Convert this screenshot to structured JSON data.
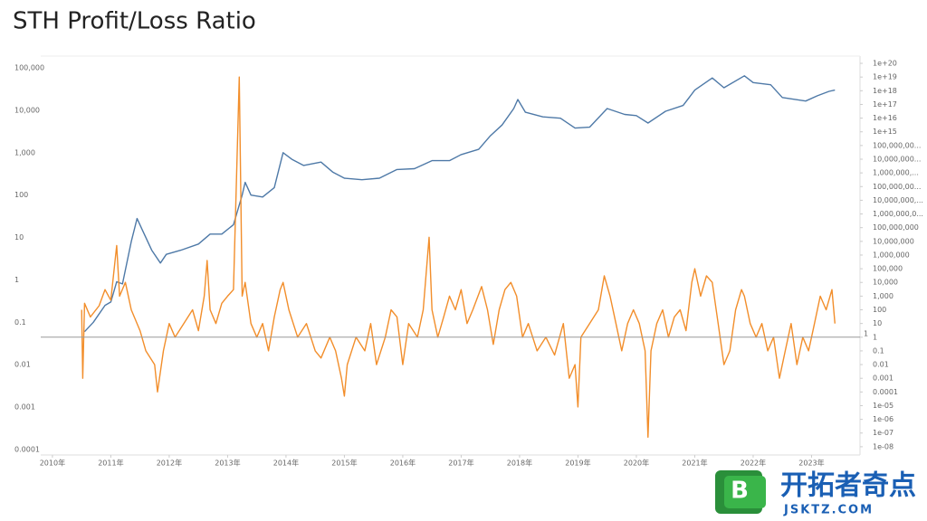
{
  "chart_data": {
    "type": "line",
    "title": "STH  Profit/Loss Ratio",
    "xlim": [
      2009.8,
      2023.83
    ],
    "xticks": [
      {
        "value": 2010,
        "label": "2010年"
      },
      {
        "value": 2011,
        "label": "2011年"
      },
      {
        "value": 2012,
        "label": "2012年"
      },
      {
        "value": 2013,
        "label": "2013年"
      },
      {
        "value": 2014,
        "label": "2014年"
      },
      {
        "value": 2015,
        "label": "2015年"
      },
      {
        "value": 2016,
        "label": "2016年"
      },
      {
        "value": 2017,
        "label": "2017年"
      },
      {
        "value": 2018,
        "label": "2018年"
      },
      {
        "value": 2019,
        "label": "2019年"
      },
      {
        "value": 2020,
        "label": "2020年"
      },
      {
        "value": 2021,
        "label": "2021年"
      },
      {
        "value": 2022,
        "label": "2022年"
      },
      {
        "value": 2023,
        "label": "2023年"
      }
    ],
    "log_y": true,
    "ylim": [
      7.4e-05,
      190000
    ],
    "yticks": [
      {
        "value": 100000,
        "label": "100,000"
      },
      {
        "value": 10000,
        "label": "10,000"
      },
      {
        "value": 1000,
        "label": "1,000"
      },
      100,
      10,
      1,
      0.1,
      0.01,
      0.001,
      0.0001
    ],
    "log_y2": true,
    "y2lim": [
      2.5e-09,
      3.4e+20
    ],
    "y2ticks": [
      {
        "value": 1e+20,
        "label": "1e+20"
      },
      {
        "value": 1e+19,
        "label": "1e+19"
      },
      {
        "value": 1e+18,
        "label": "1e+18"
      },
      {
        "value": 1e+17,
        "label": "1e+17"
      },
      {
        "value": 1e+16,
        "label": "1e+16"
      },
      {
        "value": 1000000000000000.0,
        "label": "1e+15"
      },
      {
        "value": 100000000000000.0,
        "label": "100,000,00..."
      },
      {
        "value": 10000000000000.0,
        "label": "10,000,000..."
      },
      {
        "value": 1000000000000.0,
        "label": "1,000,000,..."
      },
      {
        "value": 100000000000.0,
        "label": "100,000,00..."
      },
      {
        "value": 10000000000.0,
        "label": "10,000,000,..."
      },
      {
        "value": 1000000000.0,
        "label": "1,000,000,0..."
      },
      {
        "value": 100000000,
        "label": "100,000,000"
      },
      {
        "value": 10000000,
        "label": "10,000,000"
      },
      {
        "value": 1000000,
        "label": "1,000,000"
      },
      {
        "value": 100000,
        "label": "100,000"
      },
      {
        "value": 10000,
        "label": "10,000"
      },
      {
        "value": 1000,
        "label": "1,000"
      },
      100,
      10,
      1,
      0.1,
      0.01,
      0.001,
      0.0001,
      {
        "value": 1e-05,
        "label": "1e-05"
      },
      {
        "value": 1e-06,
        "label": "1e-06"
      },
      {
        "value": 1e-07,
        "label": "1e-07"
      },
      {
        "value": 1e-08,
        "label": "1e-08"
      }
    ],
    "reference_line": 1,
    "series": [
      {
        "color": "#4e79a7",
        "axis": "y",
        "x": [
          2010.55,
          2010.7,
          2010.9,
          2011.0,
          2011.1,
          2011.2,
          2011.35,
          2011.45,
          2011.55,
          2011.7,
          2011.85,
          2011.95,
          2012.2,
          2012.5,
          2012.7,
          2012.9,
          2013.1,
          2013.25,
          2013.3,
          2013.4,
          2013.6,
          2013.8,
          2013.95,
          2014.1,
          2014.3,
          2014.6,
          2014.8,
          2015.0,
          2015.3,
          2015.6,
          2015.9,
          2016.2,
          2016.5,
          2016.8,
          2017.0,
          2017.3,
          2017.5,
          2017.7,
          2017.9,
          2017.97,
          2018.1,
          2018.4,
          2018.7,
          2018.95,
          2019.2,
          2019.5,
          2019.8,
          2020.0,
          2020.2,
          2020.5,
          2020.8,
          2021.0,
          2021.3,
          2021.5,
          2021.85,
          2022.0,
          2022.3,
          2022.5,
          2022.9,
          2023.1,
          2023.3,
          2023.4
        ],
        "values": [
          0.06,
          0.1,
          0.25,
          0.3,
          0.9,
          0.8,
          8,
          28,
          14,
          5,
          2.5,
          4,
          5,
          7,
          12,
          12,
          20,
          100,
          200,
          100,
          90,
          150,
          1000,
          700,
          500,
          600,
          350,
          250,
          230,
          250,
          400,
          420,
          650,
          650,
          900,
          1200,
          2500,
          4500,
          11000,
          18000,
          9000,
          7000,
          6500,
          3800,
          4000,
          11000,
          8000,
          7500,
          5000,
          9500,
          13000,
          30000,
          58000,
          34000,
          65000,
          45000,
          40000,
          20000,
          16500,
          22000,
          28000,
          30000
        ]
      },
      {
        "color": "#f28e2b",
        "axis": "y2",
        "x": [
          2010.5,
          2010.52,
          2010.55,
          2010.65,
          2010.8,
          2010.9,
          2011.0,
          2011.1,
          2011.15,
          2011.25,
          2011.35,
          2011.5,
          2011.6,
          2011.75,
          2011.8,
          2011.9,
          2012.0,
          2012.1,
          2012.25,
          2012.4,
          2012.5,
          2012.6,
          2012.65,
          2012.7,
          2012.8,
          2012.9,
          2013.0,
          2013.1,
          2013.2,
          2013.25,
          2013.3,
          2013.4,
          2013.5,
          2013.6,
          2013.7,
          2013.8,
          2013.9,
          2013.95,
          2014.05,
          2014.2,
          2014.35,
          2014.5,
          2014.6,
          2014.75,
          2014.85,
          2014.95,
          2015.0,
          2015.05,
          2015.2,
          2015.35,
          2015.45,
          2015.55,
          2015.7,
          2015.8,
          2015.9,
          2016.0,
          2016.1,
          2016.25,
          2016.35,
          2016.45,
          2016.5,
          2016.6,
          2016.7,
          2016.8,
          2016.9,
          2017.0,
          2017.1,
          2017.2,
          2017.35,
          2017.45,
          2017.55,
          2017.65,
          2017.75,
          2017.85,
          2017.95,
          2018.05,
          2018.15,
          2018.3,
          2018.45,
          2018.6,
          2018.75,
          2018.85,
          2018.95,
          2019.0,
          2019.05,
          2019.2,
          2019.35,
          2019.45,
          2019.55,
          2019.65,
          2019.75,
          2019.85,
          2019.95,
          2020.05,
          2020.15,
          2020.2,
          2020.25,
          2020.35,
          2020.45,
          2020.55,
          2020.65,
          2020.75,
          2020.85,
          2020.95,
          2021.0,
          2021.1,
          2021.2,
          2021.3,
          2021.4,
          2021.5,
          2021.6,
          2021.7,
          2021.8,
          2021.85,
          2021.95,
          2022.05,
          2022.15,
          2022.25,
          2022.35,
          2022.45,
          2022.55,
          2022.65,
          2022.75,
          2022.85,
          2022.95,
          2023.05,
          2023.15,
          2023.25,
          2023.35,
          2023.4
        ],
        "values": [
          100,
          0.001,
          300,
          30,
          200,
          3000,
          500,
          5000000,
          1000,
          10000,
          100,
          3,
          0.1,
          0.01,
          0.0001,
          0.1,
          10,
          1,
          10,
          100,
          3,
          1000,
          400000,
          100,
          10,
          300,
          1000,
          3000,
          1e+19,
          1000,
          10000,
          10,
          1,
          10,
          0.1,
          30,
          3000,
          10000,
          100,
          1,
          10,
          0.1,
          0.03,
          1,
          0.1,
          0.001,
          5e-05,
          0.01,
          1,
          0.1,
          10,
          0.01,
          1,
          100,
          30,
          0.01,
          10,
          1,
          100,
          20000000,
          100,
          1,
          30,
          1000,
          100,
          3000,
          10,
          100,
          5000,
          100,
          0.3,
          100,
          3000,
          10000,
          1000,
          1,
          10,
          0.1,
          1,
          0.05,
          10,
          0.001,
          0.01,
          8e-06,
          1,
          10,
          100,
          30000,
          1000,
          10,
          0.1,
          10,
          100,
          10,
          0.1,
          5e-08,
          0.1,
          10,
          100,
          1,
          30,
          100,
          3,
          10000,
          100000,
          1000,
          30000,
          10000,
          10,
          0.01,
          0.1,
          100,
          3000,
          1000,
          10,
          1,
          10,
          0.1,
          1,
          0.001,
          0.1,
          10,
          0.01,
          1,
          0.1,
          10,
          1000,
          100,
          3000,
          10
        ]
      }
    ]
  },
  "watermark": {
    "icon_letter": "B",
    "text": "开拓者奇点",
    "url": "JSKTZ.COM"
  }
}
